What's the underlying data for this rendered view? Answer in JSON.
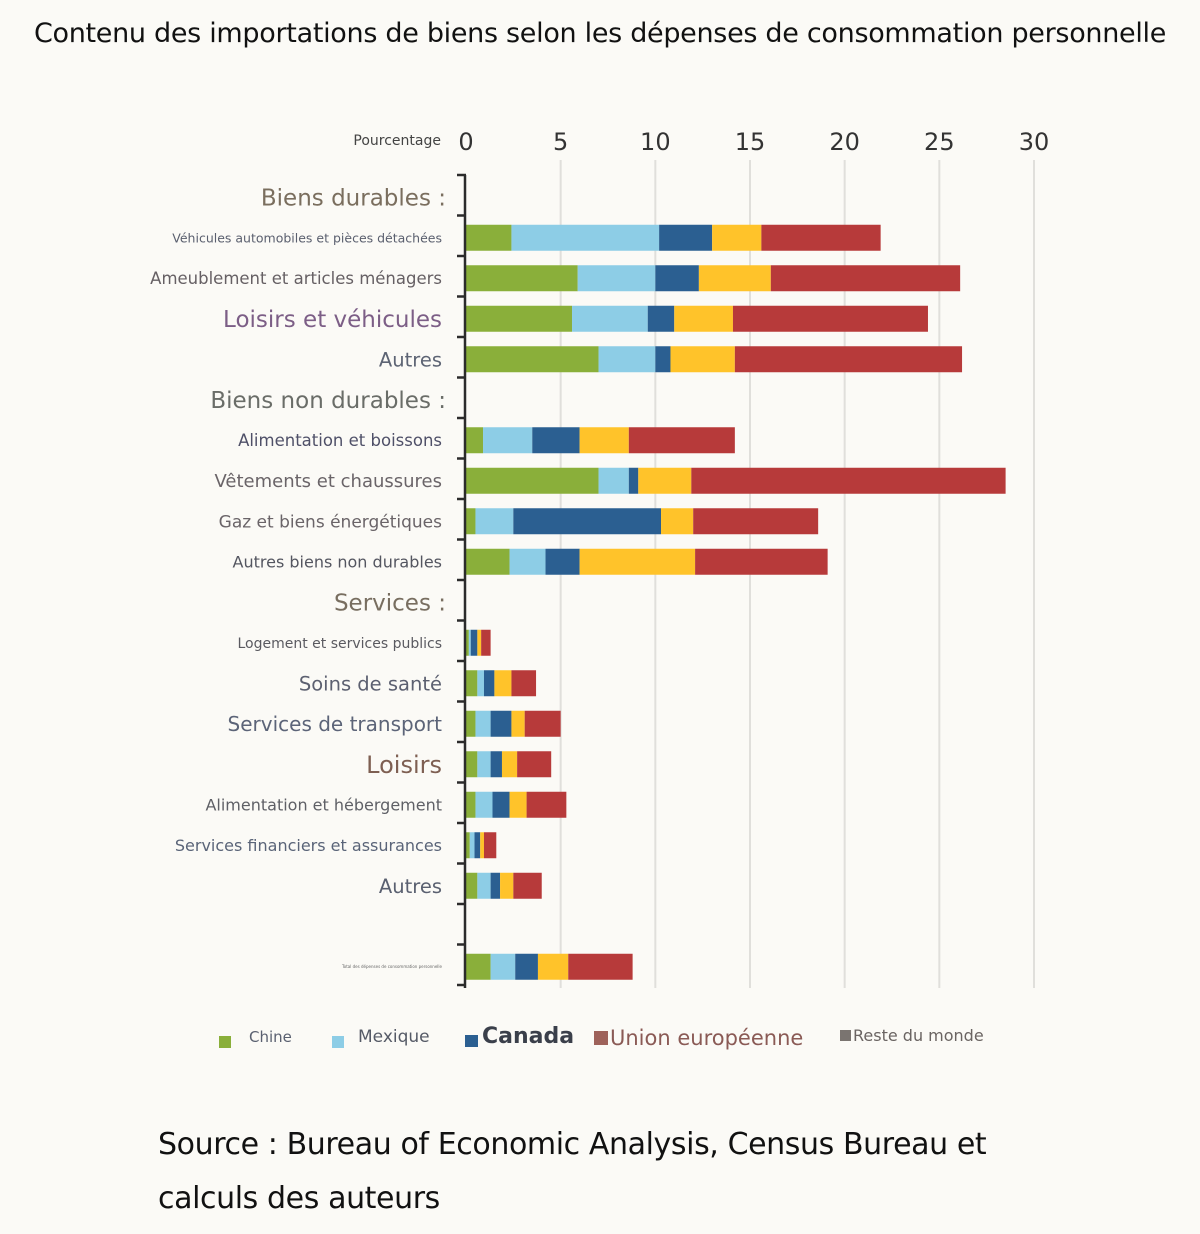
{
  "title": "Contenu des importations de biens selon les dépenses de consommation personnelle",
  "source": "Source : Bureau of Economic Analysis, Census Bureau et calculs des auteurs",
  "chart_data": {
    "type": "bar",
    "orientation": "horizontal",
    "stacked": true,
    "title": "Contenu des importations de biens selon les dépenses de consommation personnelle",
    "xlabel": "Pourcentage",
    "ylabel": "",
    "xlim": [
      0,
      30
    ],
    "xticks": [
      "0",
      "5",
      "10",
      "15",
      "20",
      "25",
      "30"
    ],
    "grid": "vertical",
    "axis_position": "top",
    "legend_position": "bottom",
    "rows": [
      {
        "label": "Biens durables :",
        "kind": "header",
        "color": "#7a6e5e"
      },
      {
        "label": "Véhicules automobiles et pièces détachées",
        "kind": "item",
        "color": "#5a5f6e"
      },
      {
        "label": "Ameublement et articles ménagers",
        "kind": "item",
        "color": "#666064"
      },
      {
        "label": "Loisirs et véhicules",
        "kind": "item",
        "color": "#7c5e86"
      },
      {
        "label": "Autres",
        "kind": "item",
        "color": "#5d6474"
      },
      {
        "label": "Biens non durables :",
        "kind": "header",
        "color": "#6a6d68"
      },
      {
        "label": "Alimentation et boissons",
        "kind": "item",
        "color": "#4f5068"
      },
      {
        "label": "Vêtements et chaussures",
        "kind": "item",
        "color": "#6a6468"
      },
      {
        "label": "Gaz et biens énergétiques",
        "kind": "item",
        "color": "#6a6468"
      },
      {
        "label": "Autres biens non durables",
        "kind": "item",
        "color": "#545660"
      },
      {
        "label": "Services :",
        "kind": "header",
        "color": "#786e60"
      },
      {
        "label": "Logement et services publics",
        "kind": "item",
        "color": "#5a5a60"
      },
      {
        "label": "Soins de santé",
        "kind": "item",
        "color": "#5c6070"
      },
      {
        "label": "Services de transport",
        "kind": "item",
        "color": "#5c6478"
      },
      {
        "label": "Loisirs",
        "kind": "item",
        "color": "#7e5f52"
      },
      {
        "label": "Alimentation et hébergement",
        "kind": "item",
        "color": "#5f6066"
      },
      {
        "label": "Services financiers et assurances",
        "kind": "item",
        "color": "#5a6478"
      },
      {
        "label": "Autres",
        "kind": "item",
        "color": "#5a6070"
      },
      {
        "label": "",
        "kind": "blank",
        "color": "#5a6070"
      },
      {
        "label": "Total des dépenses de consommation personnelle",
        "kind": "total",
        "color": "#666666"
      }
    ],
    "categories": [
      "Véhicules automobiles et pièces détachées",
      "Ameublement et articles ménagers",
      "Loisirs et véhicules",
      "Autres",
      "Alimentation et boissons",
      "Vêtements et chaussures",
      "Gaz et biens énergétiques",
      "Autres biens non durables",
      "Logement et services publics",
      "Soins de santé",
      "Services de transport",
      "Loisirs",
      "Alimentation et hébergement",
      "Services financiers et assurances",
      "Autres",
      "Total des dépenses de consommation personnelle"
    ],
    "series": [
      {
        "name": "Chine",
        "color": "#8aaf3a",
        "values": [
          2.4,
          5.9,
          5.6,
          7.0,
          0.9,
          7.0,
          0.5,
          2.3,
          0.15,
          0.6,
          0.5,
          0.6,
          0.5,
          0.2,
          0.6,
          1.3
        ]
      },
      {
        "name": "Mexique",
        "color": "#8dcde6",
        "values": [
          7.8,
          4.1,
          4.0,
          3.0,
          2.6,
          1.6,
          2.0,
          1.9,
          0.1,
          0.35,
          0.8,
          0.7,
          0.9,
          0.25,
          0.7,
          1.3
        ]
      },
      {
        "name": "Canada",
        "color": "#2b5f91",
        "values": [
          2.8,
          2.3,
          1.4,
          0.8,
          2.5,
          0.5,
          7.8,
          1.8,
          0.35,
          0.55,
          1.1,
          0.6,
          0.9,
          0.3,
          0.5,
          1.2
        ]
      },
      {
        "name": "Union européenne",
        "color": "#ffc32a",
        "values": [
          2.6,
          3.8,
          3.1,
          3.4,
          2.6,
          2.8,
          1.7,
          6.1,
          0.2,
          0.9,
          0.7,
          0.8,
          0.9,
          0.2,
          0.7,
          1.6
        ]
      },
      {
        "name": "Reste du monde",
        "color": "#b73a3a",
        "values": [
          6.3,
          10.0,
          10.3,
          12.0,
          5.6,
          16.6,
          6.6,
          7.0,
          0.5,
          1.3,
          1.9,
          1.8,
          2.1,
          0.65,
          1.5,
          3.4
        ]
      }
    ]
  },
  "legend": {
    "items": [
      {
        "label": "Chine",
        "swatch": "#8aaf3a",
        "text_color": "#5a6070"
      },
      {
        "label": "Mexique",
        "swatch": "#8dcde6",
        "text_color": "#555a66"
      },
      {
        "label": "Canada",
        "swatch": "#2b5f91",
        "text_color": "#3a3f4a"
      },
      {
        "label": "Union européenne",
        "swatch": "#9e625a",
        "text_color": "#8a5a55"
      },
      {
        "label": "Reste du monde",
        "swatch": "#7a7470",
        "text_color": "#6a6462"
      }
    ]
  }
}
